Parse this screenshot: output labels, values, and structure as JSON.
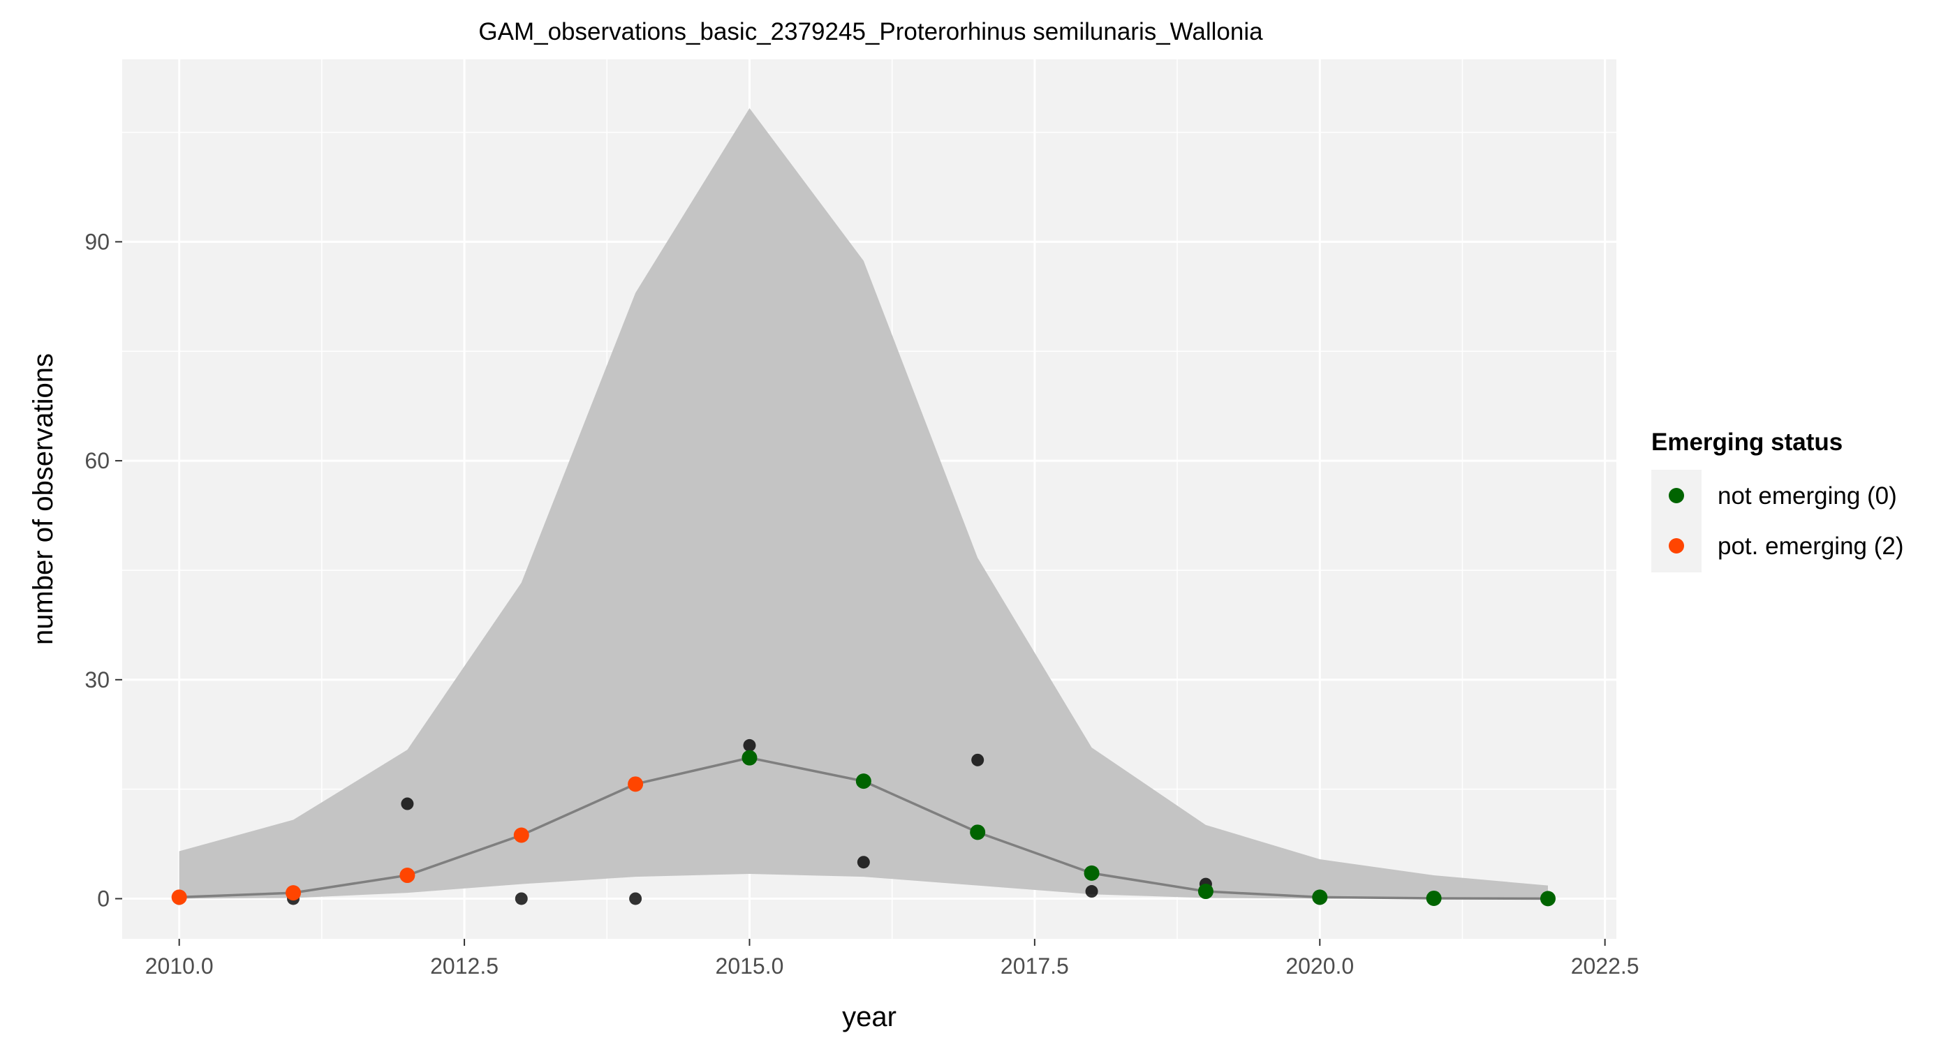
{
  "chart_data": {
    "type": "line",
    "title": "GAM_observations_basic_2379245_Proterorhinus semilunaris_Wallonia",
    "xlabel": "year",
    "ylabel": "number of observations",
    "xlim": [
      2009.5,
      2022.6
    ],
    "ylim": [
      -5.5,
      115
    ],
    "x_ticks": [
      2010.0,
      2012.5,
      2015.0,
      2017.5,
      2020.0,
      2022.5
    ],
    "x_tick_labels": [
      "2010.0",
      "2012.5",
      "2015.0",
      "2017.5",
      "2020.0",
      "2022.5"
    ],
    "y_ticks": [
      0,
      30,
      60,
      90
    ],
    "y_tick_labels": [
      "0",
      "30",
      "60",
      "90"
    ],
    "grid": true,
    "legend": {
      "title": "Emerging status",
      "placement": "right",
      "entries": [
        {
          "label": "not emerging (0)",
          "color": "#006400"
        },
        {
          "label": "pot. emerging (2)",
          "color": "#ff4500"
        }
      ]
    },
    "observations": {
      "x": [
        2010,
        2011,
        2012,
        2013,
        2014,
        2015,
        2016,
        2017,
        2018,
        2019,
        2020,
        2021,
        2022
      ],
      "y": [
        0,
        0,
        13,
        0,
        0,
        21,
        5,
        19,
        1,
        2,
        0,
        0,
        0
      ],
      "color": "#000000"
    },
    "gam_fit": {
      "x": [
        2010,
        2011,
        2012,
        2013,
        2014,
        2015,
        2016,
        2017,
        2018,
        2019,
        2020,
        2021,
        2022
      ],
      "fit": [
        0.2,
        0.8,
        3.2,
        8.7,
        15.7,
        19.3,
        16.1,
        9.1,
        3.5,
        1.0,
        0.2,
        0.05,
        0.01
      ],
      "lower": [
        0,
        0.1,
        0.8,
        2.0,
        3.0,
        3.4,
        3.0,
        1.8,
        0.6,
        0.1,
        0,
        0,
        0
      ],
      "upper": [
        6.5,
        10.8,
        20.4,
        43.3,
        83.0,
        108.3,
        87.4,
        46.7,
        20.7,
        10.1,
        5.4,
        3.2,
        1.8
      ],
      "status": [
        "pot. emerging (2)",
        "pot. emerging (2)",
        "pot. emerging (2)",
        "pot. emerging (2)",
        "pot. emerging (2)",
        "not emerging (0)",
        "not emerging (0)",
        "not emerging (0)",
        "not emerging (0)",
        "not emerging (0)",
        "not emerging (0)",
        "not emerging (0)",
        "not emerging (0)"
      ],
      "line_color": "#7f7f7f",
      "band_color": "#c4c4c4"
    },
    "panel_background": "#f2f2f2",
    "grid_color": "#ffffff"
  }
}
